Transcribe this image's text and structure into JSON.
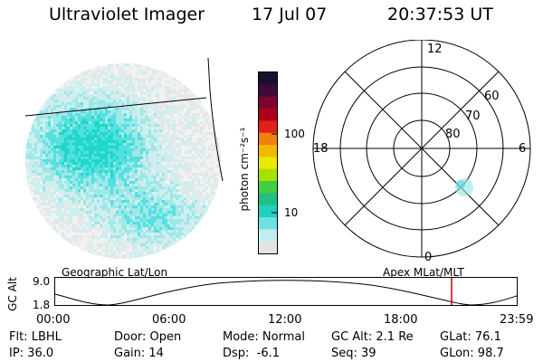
{
  "header": {
    "title": "Ultraviolet Imager",
    "date": "17 Jul 07",
    "time": "20:37:53 UT"
  },
  "colorbar": {
    "unit": "photon cm⁻²s⁻¹",
    "ticks": [
      "100",
      "10"
    ],
    "colors": [
      "#1a0f2e",
      "#3d0a3a",
      "#7a0530",
      "#b00018",
      "#e0201a",
      "#f08010",
      "#f5b800",
      "#e8e800",
      "#a8e000",
      "#40d040",
      "#20c080",
      "#20d0c0",
      "#70e0e0",
      "#c0eeee",
      "#e4e4e4"
    ]
  },
  "polar": {
    "mlt_labels": {
      "top": "12",
      "left": "18",
      "right": "6",
      "bottom": "0"
    },
    "lat_labels": [
      "60",
      "70",
      "80"
    ]
  },
  "altitude_panel": {
    "left_label": "Geographic Lat/Lon",
    "right_label": "Apex MLat/MLT",
    "axis_title": "GC Alt",
    "y_ticks": [
      "9.0",
      "1.8"
    ],
    "x_ticks": [
      "00:00",
      "06:00",
      "12:00",
      "18:00",
      "23:59"
    ],
    "marker_color": "#cc0000"
  },
  "info": {
    "filter": "Flt: LBHL",
    "door": "Door: Open",
    "mode": "Mode: Normal",
    "gc_alt": "GC Alt: 2.1 Re",
    "glat": "GLat: 76.1",
    "ip": "IP: 36.0",
    "gain": "Gain: 14",
    "dsp": "Dsp:  -6.1",
    "seq": "Seq: 39",
    "glon": "GLon: 98.7"
  }
}
